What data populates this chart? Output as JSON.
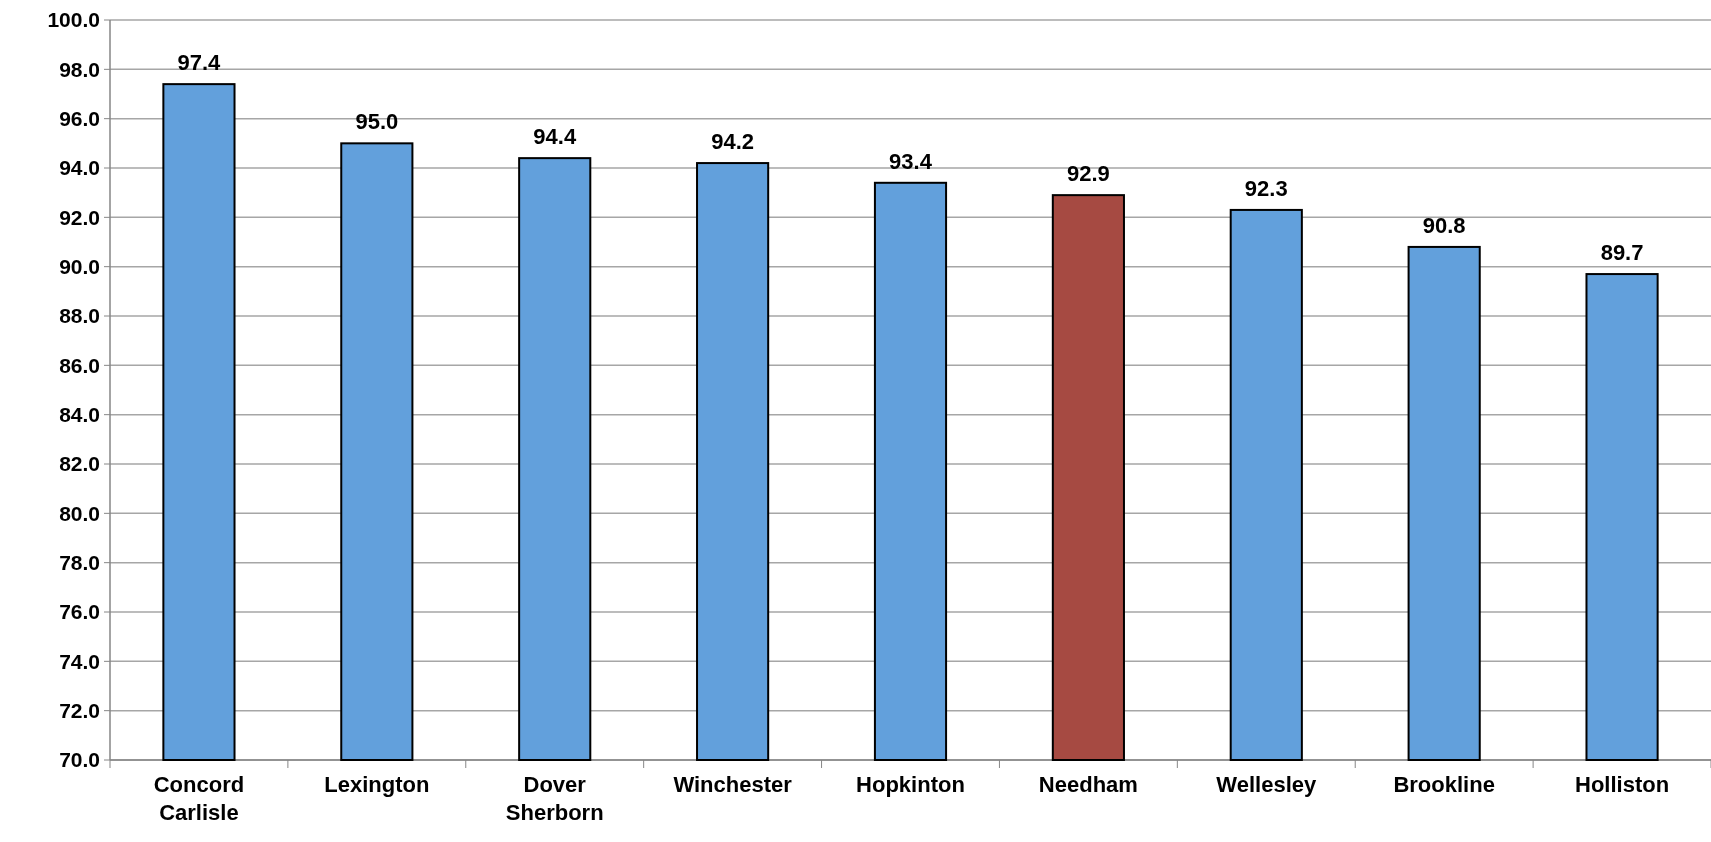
{
  "chart_data": {
    "type": "bar",
    "categories": [
      "Concord Carlisle",
      "Lexington",
      "Dover Sherborn",
      "Winchester",
      "Hopkinton",
      "Needham",
      "Wellesley",
      "Brookline",
      "Holliston"
    ],
    "values": [
      97.4,
      95.0,
      94.4,
      94.2,
      93.4,
      92.9,
      92.3,
      90.8,
      89.7
    ],
    "colors": [
      "#62a0dc",
      "#62a0dc",
      "#62a0dc",
      "#62a0dc",
      "#62a0dc",
      "#a64a42",
      "#62a0dc",
      "#62a0dc",
      "#62a0dc"
    ],
    "value_labels": [
      "97.4",
      "95.0",
      "94.4",
      "94.2",
      "93.4",
      "92.9",
      "92.3",
      "90.8",
      "89.7"
    ],
    "ylim": [
      70,
      100
    ],
    "yticks": [
      {
        "value": 70,
        "label": "70.0"
      },
      {
        "value": 72,
        "label": "72.0"
      },
      {
        "value": 74,
        "label": "74.0"
      },
      {
        "value": 76,
        "label": "76.0"
      },
      {
        "value": 78,
        "label": "78.0"
      },
      {
        "value": 80,
        "label": "80.0"
      },
      {
        "value": 82,
        "label": "82.0"
      },
      {
        "value": 84,
        "label": "84.0"
      },
      {
        "value": 86,
        "label": "86.0"
      },
      {
        "value": 88,
        "label": "88.0"
      },
      {
        "value": 90,
        "label": "90.0"
      },
      {
        "value": 92,
        "label": "92.0"
      },
      {
        "value": 94,
        "label": "94.0"
      },
      {
        "value": 96,
        "label": "96.0"
      },
      {
        "value": 98,
        "label": "98.0"
      },
      {
        "value": 100,
        "label": "100.0"
      }
    ],
    "grid": "y"
  }
}
